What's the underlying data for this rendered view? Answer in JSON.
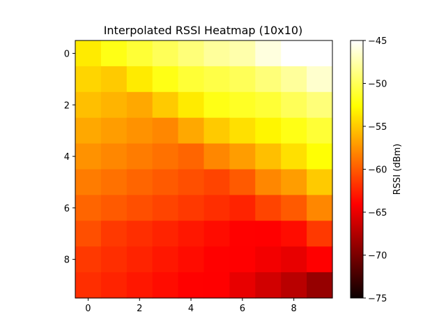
{
  "chart_data": {
    "type": "heatmap",
    "title": "Interpolated RSSI Heatmap (10x10)",
    "xlabel": "",
    "ylabel": "",
    "rows": 10,
    "cols": 10,
    "x_ticks": [
      "0",
      "2",
      "4",
      "6",
      "8"
    ],
    "y_ticks": [
      "0",
      "2",
      "4",
      "6",
      "8"
    ],
    "colormap": "hot",
    "vmin": -75,
    "vmax": -45,
    "colorbar": {
      "label": "RSSI (dBm)",
      "ticks": [
        "−45",
        "−50",
        "−55",
        "−60",
        "−65",
        "−70",
        "−75"
      ]
    },
    "values": [
      [
        -53.5,
        -52.0,
        -51.0,
        -50.0,
        -49.0,
        -48.0,
        -47.5,
        -46.0,
        -45.0,
        -45.0
      ],
      [
        -54.5,
        -55.0,
        -53.5,
        -52.0,
        -51.0,
        -50.5,
        -50.0,
        -49.0,
        -48.0,
        -46.5
      ],
      [
        -55.5,
        -56.0,
        -56.5,
        -55.0,
        -53.5,
        -52.0,
        -51.5,
        -51.0,
        -50.0,
        -49.0
      ],
      [
        -56.5,
        -57.0,
        -57.5,
        -58.0,
        -56.5,
        -55.0,
        -54.0,
        -53.0,
        -52.0,
        -51.0
      ],
      [
        -57.5,
        -58.0,
        -58.5,
        -59.0,
        -59.5,
        -58.0,
        -57.0,
        -55.5,
        -54.0,
        -52.5
      ],
      [
        -58.5,
        -59.0,
        -59.5,
        -60.0,
        -60.5,
        -61.0,
        -60.0,
        -58.0,
        -57.0,
        -55.0
      ],
      [
        -59.5,
        -60.0,
        -60.5,
        -61.0,
        -61.5,
        -62.0,
        -62.5,
        -61.0,
        -60.0,
        -58.0
      ],
      [
        -60.5,
        -61.5,
        -62.0,
        -62.5,
        -63.0,
        -63.5,
        -64.0,
        -64.5,
        -63.5,
        -61.5
      ],
      [
        -61.5,
        -62.0,
        -62.5,
        -63.0,
        -63.5,
        -64.0,
        -64.5,
        -65.0,
        -65.5,
        -64.5
      ],
      [
        -62.0,
        -62.5,
        -63.0,
        -63.5,
        -64.0,
        -64.5,
        -65.5,
        -66.5,
        -67.5,
        -69.0
      ]
    ]
  }
}
